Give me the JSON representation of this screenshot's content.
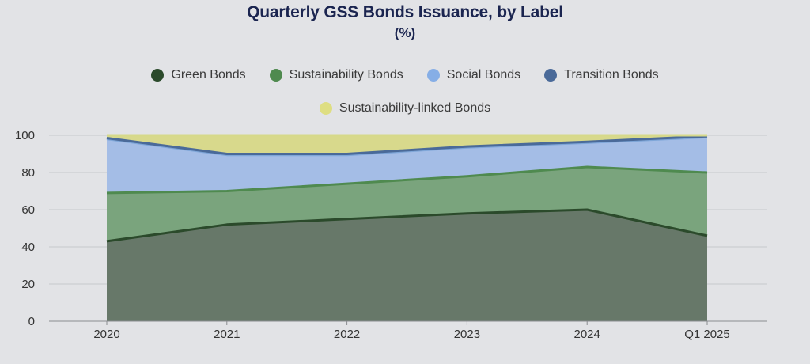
{
  "chart_data": {
    "type": "area",
    "stacked": true,
    "title": "Quarterly GSS Bonds Issuance, by Label",
    "subtitle": "(%)",
    "categories": [
      "2020",
      "2021",
      "2022",
      "2023",
      "2024",
      "Q1 2025"
    ],
    "ylim": [
      0,
      100
    ],
    "yticks": [
      "0",
      "20",
      "40",
      "60",
      "80",
      "100"
    ],
    "grid": true,
    "legend_position": "top",
    "series": [
      {
        "name": "Green Bonds",
        "values": [
          43,
          52,
          55,
          58,
          60,
          46
        ],
        "line_color": "#2b4a2b",
        "fill_color": "#677869",
        "swatch_color": "#2b4a2b"
      },
      {
        "name": "Sustainability Bonds",
        "values": [
          26,
          18,
          19,
          20,
          23,
          34
        ],
        "line_color": "#4f8a4f",
        "fill_color": "#7aa47d",
        "swatch_color": "#4f8a4f"
      },
      {
        "name": "Social Bonds",
        "values": [
          29,
          19.5,
          15.5,
          15.5,
          13,
          19
        ],
        "line_color": "#7ea6d8",
        "fill_color": "#a4bde6",
        "swatch_color": "#86aee6"
      },
      {
        "name": "Transition Bonds",
        "values": [
          0.5,
          0.5,
          0.5,
          0.5,
          0.5,
          0.5
        ],
        "line_color": "#4a6a99",
        "fill_color": "#5e7fb0",
        "swatch_color": "#4a6a99"
      },
      {
        "name": "Sustainability-linked Bonds",
        "values": [
          1.5,
          10,
          10,
          6,
          3.5,
          0.5
        ],
        "line_color": "#d6d98a",
        "fill_color": "#d8d98c",
        "swatch_color": "#dede82"
      }
    ]
  }
}
